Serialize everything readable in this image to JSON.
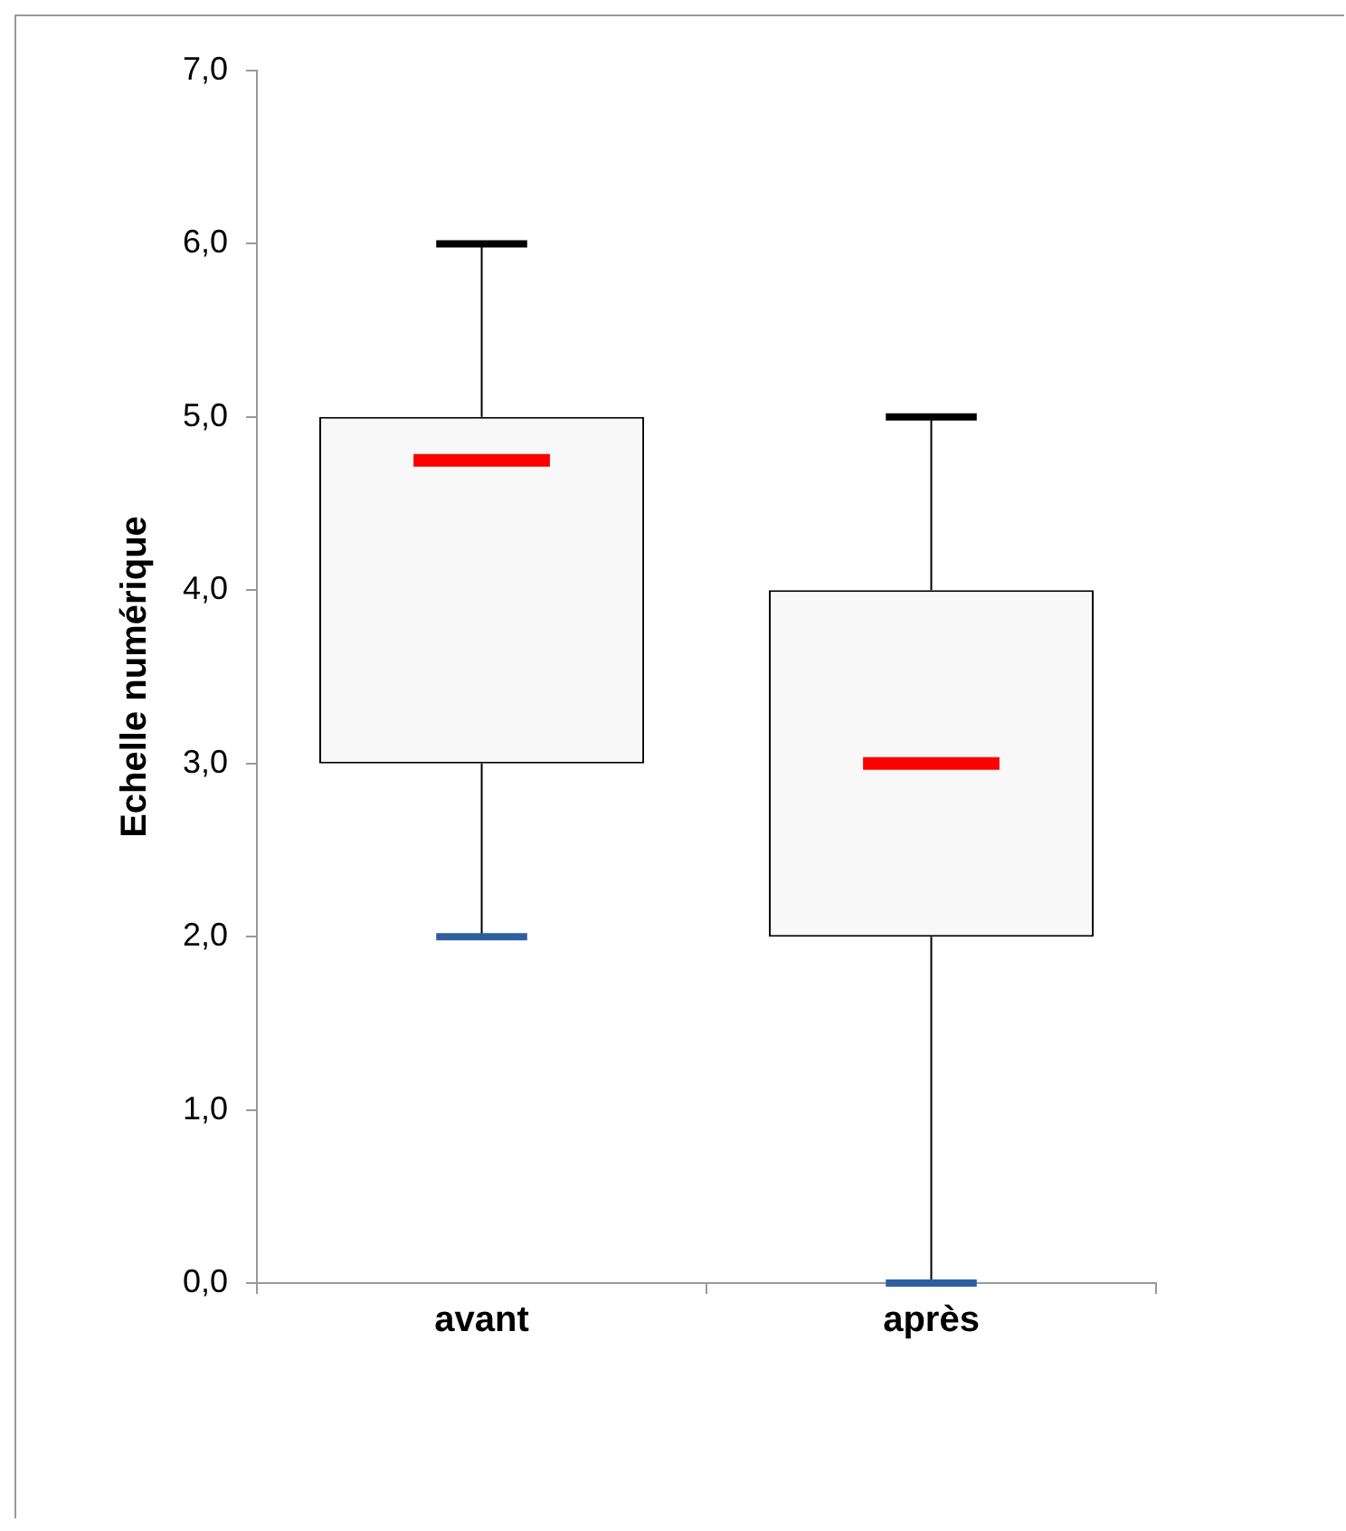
{
  "chart_data": {
    "type": "box",
    "ylabel": "Echelle numérique",
    "categories": [
      "avant",
      "après"
    ],
    "series": [
      {
        "boxes": [
          {
            "low": 2,
            "q1": 3,
            "median": 4.75,
            "q3": 5,
            "high": 6
          },
          {
            "low": 0,
            "q1": 2,
            "median": 3,
            "q3": 4,
            "high": 5
          }
        ]
      }
    ],
    "ylim": [
      0,
      7
    ],
    "yticks": [
      {
        "value": 0,
        "label": "0,0"
      },
      {
        "value": 1,
        "label": "1,0"
      },
      {
        "value": 2,
        "label": "2,0"
      },
      {
        "value": 3,
        "label": "3,0"
      },
      {
        "value": 4,
        "label": "4,0"
      },
      {
        "value": 5,
        "label": "5,0"
      },
      {
        "value": 6,
        "label": "6,0"
      },
      {
        "value": 7,
        "label": "7,0"
      }
    ],
    "grid": false,
    "legend": false
  }
}
